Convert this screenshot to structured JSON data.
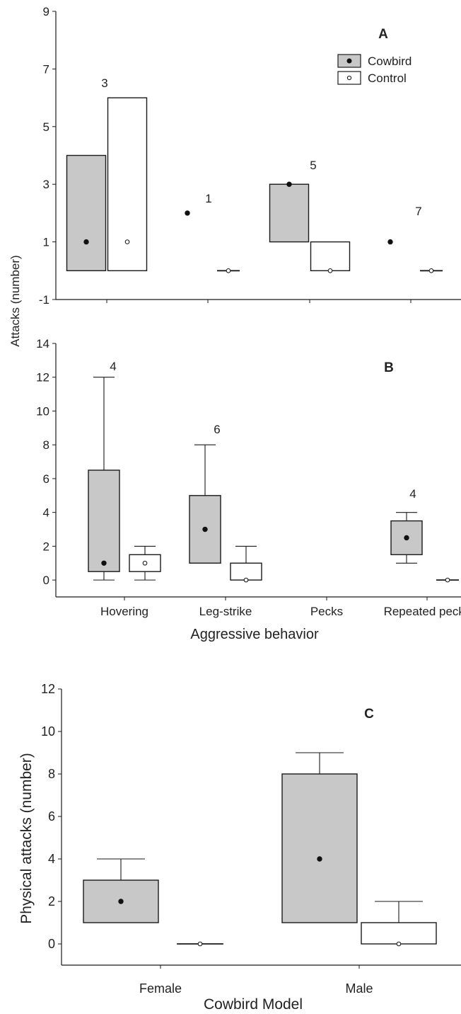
{
  "colors": {
    "cowbird_fill": "#c8c8c8",
    "control_fill": "#ffffff",
    "stroke": "#1a1a1a"
  },
  "shared": {
    "ylabel_ab": "Attacks (number)",
    "xlabel_ab": "Aggressive behavior",
    "legend": [
      {
        "name": "Cowbird",
        "fill": "#c8c8c8",
        "marker": "filled-dot"
      },
      {
        "name": "Control",
        "fill": "#ffffff",
        "marker": "open-dot"
      }
    ]
  },
  "chart_data": [
    {
      "type": "boxplot",
      "panel": "A",
      "ylim": [
        -1,
        9
      ],
      "yticks": [
        -1,
        1,
        3,
        5,
        7,
        9
      ],
      "categories": [
        "Hovering",
        "Leg-strike",
        "Pecks",
        "Repeated pecks"
      ],
      "tick_labels_shown": false,
      "sample_sizes": [
        "3",
        "1",
        "5",
        "7"
      ],
      "series": [
        {
          "name": "Cowbird",
          "boxes": [
            {
              "min": 0,
              "q1": 0,
              "median": 1,
              "q3": 4,
              "max": 4
            },
            {
              "min": 2,
              "q1": 2,
              "median": 2,
              "q3": 2,
              "max": 2
            },
            {
              "min": 1,
              "q1": 1,
              "median": 3,
              "q3": 3,
              "max": 3
            },
            {
              "min": 1,
              "q1": 1,
              "median": 1,
              "q3": 1,
              "max": 1
            }
          ]
        },
        {
          "name": "Control",
          "boxes": [
            {
              "min": 0,
              "q1": 0,
              "median": 1,
              "q3": 6,
              "max": 6
            },
            {
              "min": 0,
              "q1": 0,
              "median": 0,
              "q3": 0,
              "max": 0
            },
            {
              "min": 0,
              "q1": 0,
              "median": 0,
              "q3": 1,
              "max": 1
            },
            {
              "min": 0,
              "q1": 0,
              "median": 0,
              "q3": 0,
              "max": 0
            }
          ]
        }
      ],
      "legend": "top-right"
    },
    {
      "type": "boxplot",
      "panel": "B",
      "ylim": [
        -1,
        14
      ],
      "yticks": [
        0,
        2,
        4,
        6,
        8,
        10,
        12,
        14
      ],
      "categories": [
        "Hovering",
        "Leg-strike",
        "Pecks",
        "Repeated pecks"
      ],
      "tick_labels_shown": true,
      "sample_sizes": [
        "4",
        "6",
        "",
        "4"
      ],
      "series": [
        {
          "name": "Cowbird",
          "boxes": [
            {
              "min": 0,
              "q1": 0.5,
              "median": 1,
              "q3": 6.5,
              "max": 12
            },
            {
              "min": 1,
              "q1": 1,
              "median": 3,
              "q3": 5,
              "max": 8
            },
            null,
            {
              "min": 1,
              "q1": 1.5,
              "median": 2.5,
              "q3": 3.5,
              "max": 4
            }
          ]
        },
        {
          "name": "Control",
          "boxes": [
            {
              "min": 0,
              "q1": 0.5,
              "median": 1,
              "q3": 1.5,
              "max": 2
            },
            {
              "min": 0,
              "q1": 0,
              "median": 0,
              "q3": 1,
              "max": 2
            },
            null,
            {
              "min": 0,
              "q1": 0,
              "median": 0,
              "q3": 0,
              "max": 0
            }
          ]
        }
      ]
    },
    {
      "type": "boxplot",
      "panel": "C",
      "ylim": [
        -1,
        12
      ],
      "yticks": [
        0,
        2,
        4,
        6,
        8,
        10,
        12
      ],
      "categories": [
        "Female",
        "Male"
      ],
      "xlabel": "Cowbird Model",
      "ylabel": "Physical attacks (number)",
      "series": [
        {
          "name": "Cowbird",
          "boxes": [
            {
              "min": 1,
              "q1": 1,
              "median": 2,
              "q3": 3,
              "max": 4
            },
            {
              "min": 1,
              "q1": 1,
              "median": 4,
              "q3": 8,
              "max": 9
            }
          ]
        },
        {
          "name": "Control",
          "boxes": [
            {
              "min": 0,
              "q1": 0,
              "median": 0,
              "q3": 0,
              "max": 0
            },
            {
              "min": 0,
              "q1": 0,
              "median": 0,
              "q3": 1,
              "max": 2
            }
          ]
        }
      ]
    }
  ]
}
